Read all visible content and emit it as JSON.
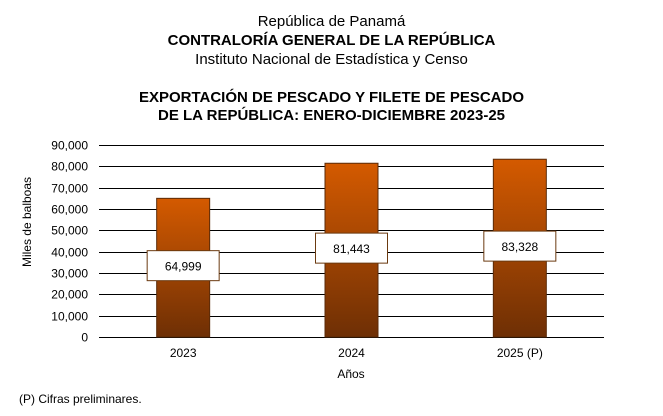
{
  "header": {
    "line1": "República de Panamá",
    "line2": "CONTRALORÍA GENERAL DE LA REPÚBLICA",
    "line3": "Instituto  Nacional de Estadística y Censo"
  },
  "footnote": "(P) Cifras  preliminares.",
  "chart_data": {
    "type": "bar",
    "title": [
      "EXPORTACIÓN DE PESCADO Y FILETE DE PESCADO",
      "DE LA REPÚBLICA: ENERO-DICIEMBRE 2023-25"
    ],
    "xlabel": "Años",
    "ylabel": "Miles de balboas",
    "categories": [
      "2023",
      "2024",
      "2025 (P)"
    ],
    "values": [
      64999,
      81443,
      83328
    ],
    "data_labels": [
      "64,999",
      "81,443",
      "83,328"
    ],
    "ylim": [
      0,
      90000
    ],
    "yticks": [
      0,
      10000,
      20000,
      30000,
      40000,
      50000,
      60000,
      70000,
      80000,
      90000
    ],
    "ytick_labels": [
      "0",
      "10,000",
      "20,000",
      "30,000",
      "40,000",
      "50,000",
      "60,000",
      "70,000",
      "80,000",
      "90,000"
    ],
    "grid": true,
    "legend": "none",
    "colors": {
      "bar_top": "#d45a00",
      "bar_bottom": "#6e2f05",
      "bar_edge": "#5a2a08"
    }
  }
}
